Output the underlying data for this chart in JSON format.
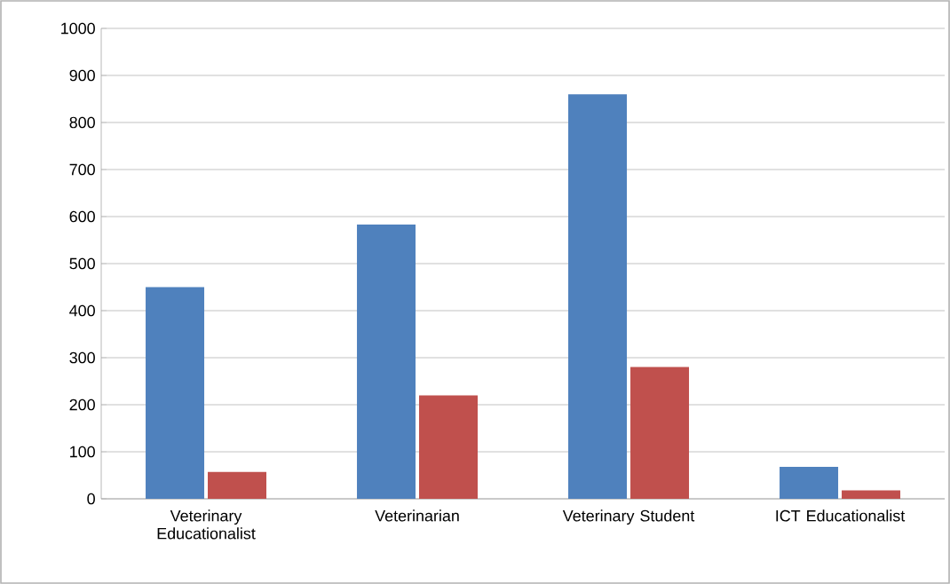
{
  "chart_data": {
    "type": "bar",
    "categories": [
      "Veterinary Educationalist",
      "Veterinarian",
      "Veterinary Student",
      "ICT Educationalist"
    ],
    "series": [
      {
        "color": "#4f81bd",
        "values": [
          450,
          583,
          860,
          68
        ]
      },
      {
        "color": "#c0504d",
        "values": [
          57,
          220,
          280,
          18
        ]
      }
    ],
    "ylim": [
      0,
      1000
    ],
    "yticks": [
      0,
      100,
      200,
      300,
      400,
      500,
      600,
      700,
      800,
      900,
      1000
    ],
    "grid": "y"
  }
}
